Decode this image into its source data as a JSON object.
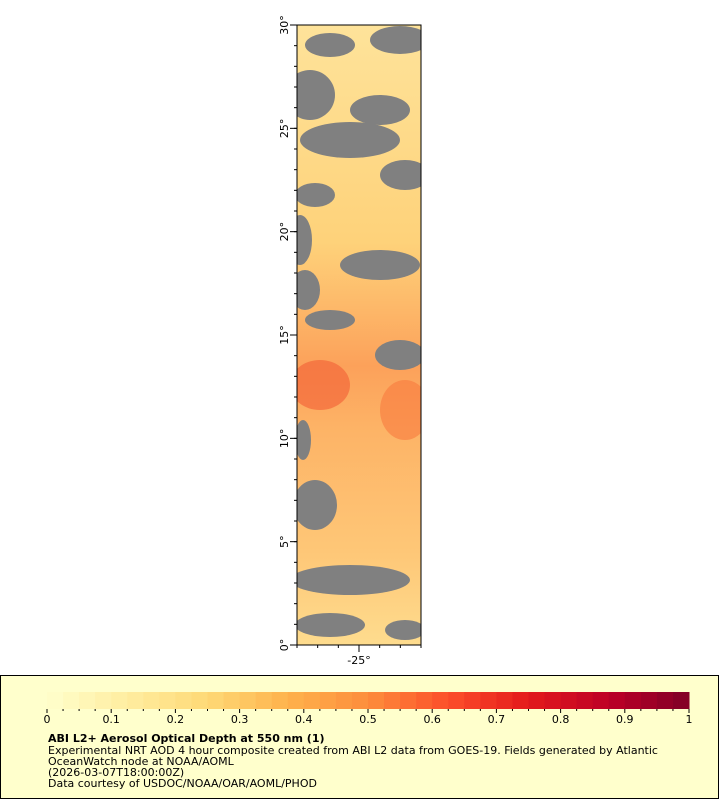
{
  "map": {
    "lat_range": [
      0,
      30
    ],
    "lon_range": [
      -28,
      -22
    ],
    "lat_ticks": [
      {
        "value": 0,
        "label": "0°"
      },
      {
        "value": 5,
        "label": "5°"
      },
      {
        "value": 10,
        "label": "10°"
      },
      {
        "value": 15,
        "label": "15°"
      },
      {
        "value": 20,
        "label": "20°"
      },
      {
        "value": 25,
        "label": "25°"
      },
      {
        "value": 30,
        "label": "30°"
      }
    ],
    "lon_ticks": [
      {
        "value": -25,
        "label": "-25°"
      }
    ]
  },
  "colorbar": {
    "lim": [
      0,
      1
    ],
    "ticks": [
      0,
      0.1,
      0.2,
      0.3,
      0.4,
      0.5,
      0.6,
      0.7,
      0.8,
      0.9,
      1
    ],
    "colors": [
      "#ffffcc",
      "#ffeda0",
      "#fed976",
      "#feb24c",
      "#fd8d3c",
      "#fc4e2a",
      "#e31a1c",
      "#bd0026",
      "#800026"
    ]
  },
  "legend": {
    "title": "ABI L2+ Aerosol Optical Depth at 550 nm (1)",
    "lines": [
      "Experimental NRT AOD 4 hour composite created from ABI L2 data from GOES-19. Fields generated by Atlantic",
      "OceanWatch node at NOAA/AOML",
      "(2026-03-07T18:00:00Z)",
      "Data courtesy of USDOC/NOAA/OAR/AOML/PHOD"
    ]
  }
}
